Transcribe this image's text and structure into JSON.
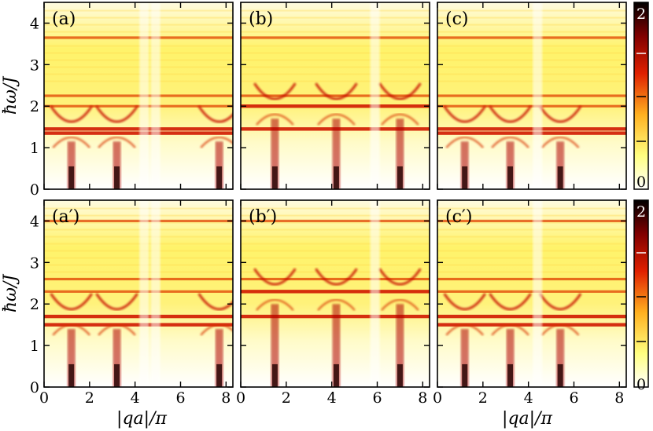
{
  "chart_data": {
    "type": "heatmap",
    "xlabel": "|qa|/π",
    "ylabel": "ħω/J",
    "xlim": [
      0,
      8.3
    ],
    "ylim": [
      0,
      4.5
    ],
    "xticks": [
      "0",
      "2",
      "4",
      "6",
      "8"
    ],
    "yticks": [
      "0",
      "1",
      "2",
      "3",
      "4"
    ],
    "colorbar": {
      "ticks": [
        "0",
        "2"
      ],
      "range": [
        0,
        2
      ],
      "colors": [
        "#ffffff",
        "#ffff80",
        "#ffb020",
        "#e02000",
        "#800000",
        "#000000"
      ]
    },
    "panels": [
      {
        "label": "(a)",
        "flat_bands": [
          3.65,
          2.25,
          2.0,
          1.45,
          1.35
        ],
        "dispersive_arcs": [
          1.2,
          3.2,
          7.7
        ],
        "gaps": [
          4.4,
          4.9
        ]
      },
      {
        "label": "(b)",
        "flat_bands": [
          3.65,
          2.25,
          2.0,
          1.45
        ],
        "dispersive_arcs": [
          1.5,
          4.2,
          7.0
        ],
        "gaps": [
          5.9
        ]
      },
      {
        "label": "(c)",
        "flat_bands": [
          3.65,
          2.25,
          2.0,
          1.45,
          1.35
        ],
        "dispersive_arcs": [
          1.2,
          3.2,
          5.4
        ],
        "gaps": [
          4.4
        ]
      },
      {
        "label": "(a′)",
        "flat_bands": [
          4.0,
          2.6,
          2.3,
          1.7,
          1.5
        ],
        "dispersive_arcs": [
          1.2,
          3.2,
          7.7
        ],
        "gaps": [
          4.4,
          4.9
        ]
      },
      {
        "label": "(b′)",
        "flat_bands": [
          4.0,
          2.6,
          2.3,
          1.7
        ],
        "dispersive_arcs": [
          1.5,
          4.2,
          7.0
        ],
        "gaps": [
          5.9
        ]
      },
      {
        "label": "(c′)",
        "flat_bands": [
          4.0,
          2.6,
          2.3,
          1.7,
          1.5
        ],
        "dispersive_arcs": [
          1.2,
          3.2,
          5.4
        ],
        "gaps": [
          4.4
        ]
      }
    ]
  }
}
